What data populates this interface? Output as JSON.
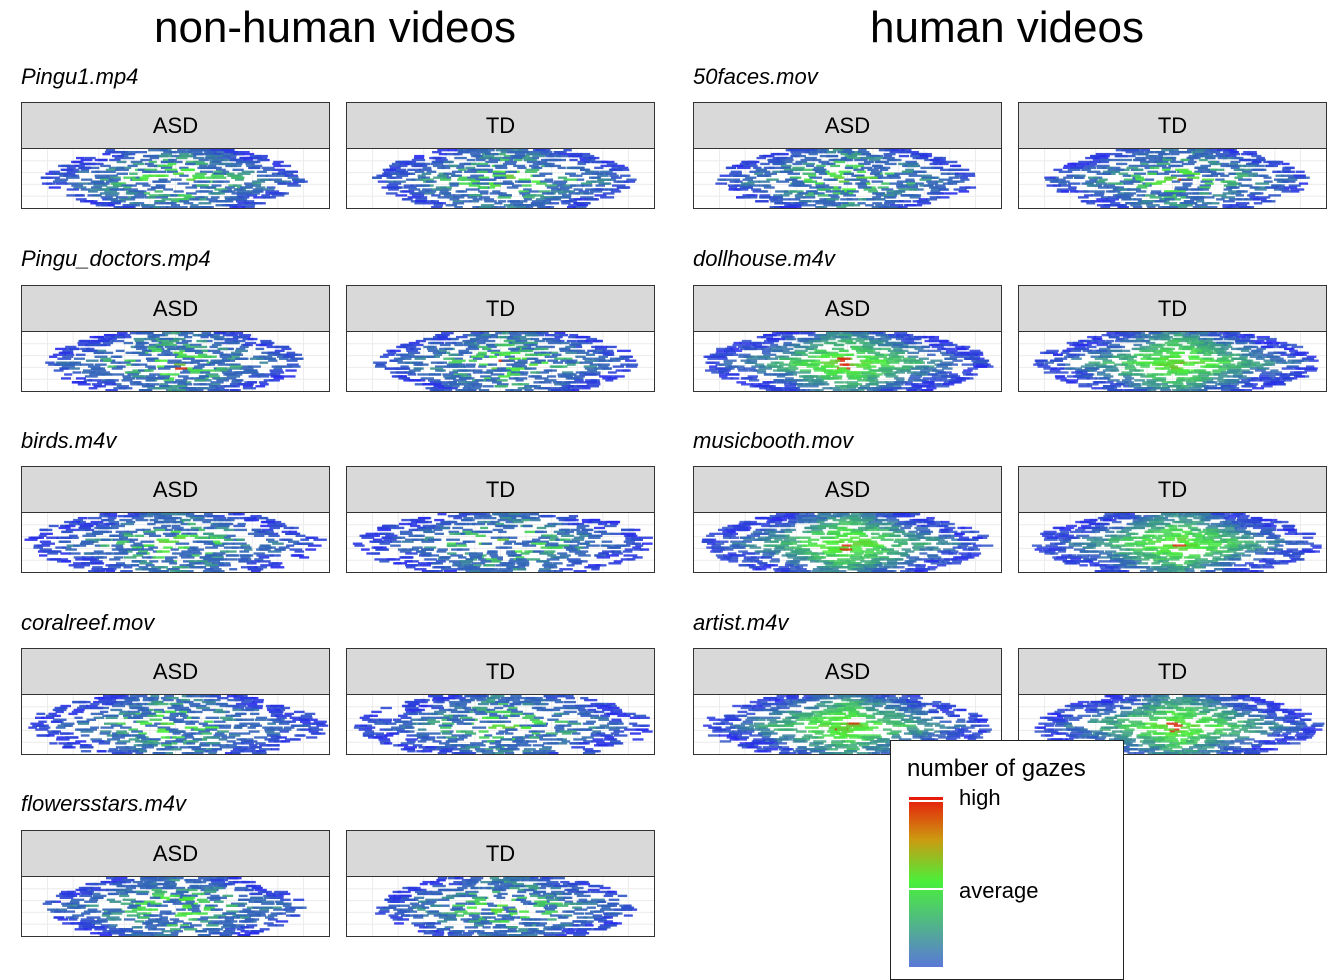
{
  "titles": {
    "left": "non-human videos",
    "right": "human videos"
  },
  "groups": [
    "ASD",
    "TD"
  ],
  "legend": {
    "title": "number of gazes",
    "high": "high",
    "average": "average"
  },
  "chart_data": {
    "type": "heatmap",
    "description_free": true,
    "columns": [
      {
        "title": "non-human videos",
        "videos": [
          "Pingu1.mp4",
          "Pingu_doctors.mp4",
          "birds.m4v",
          "coralreef.mov",
          "flowersstars.m4v"
        ]
      },
      {
        "title": "human videos",
        "videos": [
          "50faces.mov",
          "dollhouse.m4v",
          "musicbooth.mov",
          "artist.m4v"
        ]
      }
    ],
    "facets": [
      "ASD",
      "TD"
    ],
    "color_scale": {
      "low": "#5a78d8",
      "average": "#49f03a",
      "high": "#e8170c"
    }
  }
}
